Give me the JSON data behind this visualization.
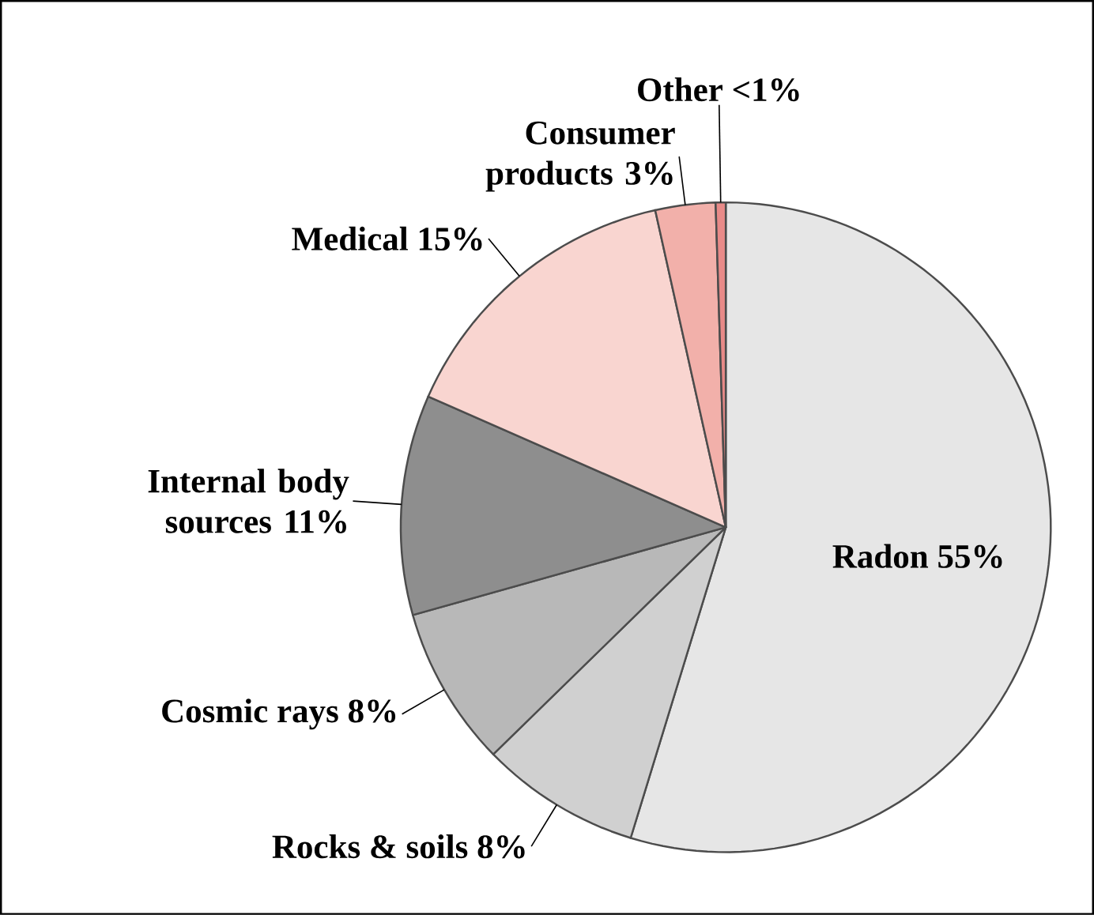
{
  "chart_data": {
    "type": "pie",
    "categories": [
      "Radon",
      "Rocks & soils",
      "Cosmic rays",
      "Internal body sources",
      "Medical",
      "Consumer products",
      "Other"
    ],
    "values": [
      55,
      8,
      8,
      11,
      15,
      3,
      0.5
    ],
    "value_labels": [
      "55%",
      "8%",
      "8%",
      "11%",
      "15%",
      "3%",
      "<1%"
    ],
    "colors": [
      "#e6e6e6",
      "#d0d0d0",
      "#b8b8b8",
      "#8e8e8e",
      "#f9d5d0",
      "#f2b0aa",
      "#e88a88"
    ]
  }
}
